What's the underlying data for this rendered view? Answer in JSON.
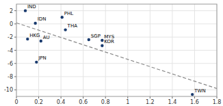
{
  "chart_data": {
    "type": "scatter",
    "series": [
      {
        "type": "scatter",
        "color": "#1a3b6e",
        "marker": "circle",
        "x": [
          0.08,
          0.17,
          0.1,
          0.22,
          0.18,
          0.41,
          0.44,
          0.65,
          0.77,
          0.77,
          1.58
        ],
        "values": [
          2.0,
          0.1,
          -2.3,
          -2.6,
          -5.8,
          1.0,
          -0.9,
          -2.4,
          -2.5,
          -3.3,
          -10.7
        ],
        "labels": [
          "IND",
          "IDN",
          "HKG",
          "AU",
          "JPN",
          "PHL",
          "THA",
          "SGP",
          "MYS",
          "KOR",
          "TWN"
        ]
      },
      {
        "type": "line",
        "color": "#888888",
        "line_style": "dashed",
        "x": [
          0.0,
          1.8
        ],
        "values": [
          0.15,
          -9.8
        ]
      }
    ],
    "xlim": [
      0.0,
      1.8
    ],
    "ylim": [
      -11,
      3
    ],
    "xticks": [
      0,
      0.2,
      0.4,
      0.6,
      0.8,
      1.0,
      1.2,
      1.4,
      1.6,
      1.8
    ],
    "yticks": [
      -10,
      -8,
      -6,
      -4,
      -2,
      0,
      2
    ],
    "grid": true
  }
}
